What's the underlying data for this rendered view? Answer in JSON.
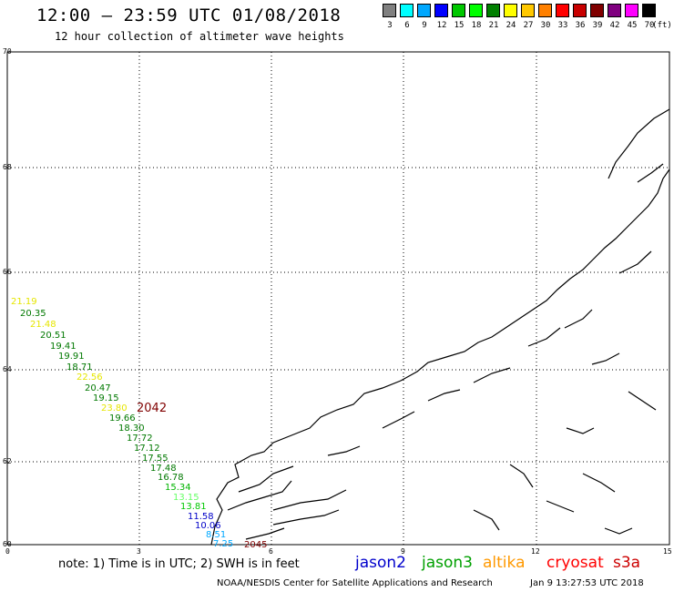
{
  "header": {
    "title": "12:00 – 23:59 UTC 01/08/2018",
    "subtitle": "12 hour collection of altimeter wave heights"
  },
  "legend": {
    "colors": [
      "#808080",
      "#00ffff",
      "#00a8ff",
      "#0000ff",
      "#00c800",
      "#00ff00",
      "#008000",
      "#ffff00",
      "#ffc800",
      "#ff8000",
      "#ff0000",
      "#c80000",
      "#800000",
      "#800080",
      "#ff00ff",
      "#000000"
    ],
    "labels": [
      "3",
      "6",
      "9",
      "12",
      "15",
      "18",
      "21",
      "24",
      "27",
      "30",
      "33",
      "36",
      "39",
      "42",
      "45",
      "70"
    ],
    "unit": "(ft)"
  },
  "axes": {
    "lat_labels": [
      "70",
      "68",
      "66",
      "64",
      "62",
      "60"
    ],
    "lon_labels": [
      "0",
      "3",
      "6",
      "9",
      "12",
      "15"
    ]
  },
  "wave_heights": [
    {
      "text": "21.19",
      "color": "#e6e600"
    },
    {
      "text": "20.35",
      "color": "#007800"
    },
    {
      "text": "21.48",
      "color": "#e6e600"
    },
    {
      "text": "20.51",
      "color": "#007800"
    },
    {
      "text": "19.41",
      "color": "#007800"
    },
    {
      "text": "19.91",
      "color": "#007800"
    },
    {
      "text": "18.71",
      "color": "#007800"
    },
    {
      "text": "22.56",
      "color": "#e6e600"
    },
    {
      "text": "20.47",
      "color": "#007800"
    },
    {
      "text": "19.15",
      "color": "#007800"
    },
    {
      "text": "23.80",
      "color": "#e6e600"
    },
    {
      "text": "2042",
      "color": "#800000"
    },
    {
      "text": "19.66",
      "color": "#007800"
    },
    {
      "text": "18.30",
      "color": "#007800"
    },
    {
      "text": "17.72",
      "color": "#007800"
    },
    {
      "text": "17.12",
      "color": "#007800"
    },
    {
      "text": "17.55",
      "color": "#007800"
    },
    {
      "text": "17.48",
      "color": "#007800"
    },
    {
      "text": "16.78",
      "color": "#007800"
    },
    {
      "text": "15.34",
      "color": "#00b400"
    },
    {
      "text": "13.15",
      "color": "#66ff66"
    },
    {
      "text": "13.81",
      "color": "#00c800"
    },
    {
      "text": "11.58",
      "color": "#0000c8"
    },
    {
      "text": "10.06",
      "color": "#0000c8"
    },
    {
      "text": "8.51",
      "color": "#00a8ff"
    },
    {
      "text": "7.25",
      "color": "#00a8ff"
    },
    {
      "text": "2045",
      "color": "#800000"
    }
  ],
  "footer": {
    "note": "note:  1) Time is in UTC;  2) SWH is in feet",
    "satellites": [
      {
        "name": "jason2",
        "color": "#0000cc"
      },
      {
        "name": "jason3",
        "color": "#00a000"
      },
      {
        "name": "altika",
        "color": "#ff9900"
      },
      {
        "name": "cryosat",
        "color": "#ff0000"
      },
      {
        "name": "s3a",
        "color": "#cc0000"
      }
    ],
    "credit": "NOAA/NESDIS Center for Satellite Applications and Research",
    "timestamp": "Jan  9 13:27:53 UTC 2018"
  }
}
